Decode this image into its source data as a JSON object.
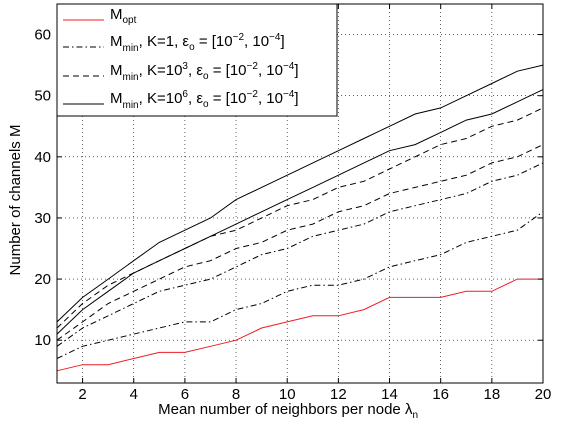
{
  "chart_data": {
    "type": "line",
    "title": "",
    "xlabel": {
      "main": "Mean number of neighbors per node ",
      "symbol": "λ",
      "sub": "n"
    },
    "ylabel": "Number of channels M",
    "xlim": [
      1,
      20
    ],
    "ylim": [
      3,
      65
    ],
    "xticks": [
      2,
      4,
      6,
      8,
      10,
      12,
      14,
      16,
      18,
      20
    ],
    "yticks": [
      10,
      20,
      30,
      40,
      50,
      60
    ],
    "grid": true,
    "legend_position": "top-left",
    "x": [
      1,
      2,
      3,
      4,
      5,
      6,
      7,
      8,
      9,
      10,
      11,
      12,
      13,
      14,
      15,
      16,
      17,
      18,
      19,
      20
    ],
    "series": [
      {
        "key": "opt",
        "legend": {
          "base": "M",
          "sub": "opt",
          "rest": "",
          "sup": "",
          "tail": ""
        },
        "color": "#ee1c25",
        "dash": "",
        "values": [
          5,
          6,
          6,
          7,
          8,
          8,
          9,
          10,
          12,
          13,
          14,
          14,
          15,
          17,
          17,
          17,
          18,
          18,
          20,
          20
        ]
      },
      {
        "key": "k1-low",
        "legend": {
          "base": "M",
          "sub": "min",
          "rest": ", K=1, ε",
          "sup": "",
          "tail": " = [10⁻², 10⁻⁴]",
          "eps_sub": "o"
        },
        "color": "#000000",
        "dash": "6,3,1.5,3",
        "values": [
          7,
          9,
          10,
          11,
          12,
          13,
          13,
          15,
          16,
          18,
          19,
          19,
          20,
          22,
          23,
          24,
          26,
          27,
          28,
          31
        ]
      },
      {
        "key": "k1-high",
        "legend": null,
        "color": "#000000",
        "dash": "6,3,1.5,3",
        "values": [
          9,
          12,
          14,
          16,
          18,
          19,
          20,
          22,
          24,
          25,
          27,
          28,
          29,
          31,
          32,
          33,
          34,
          36,
          37,
          39
        ]
      },
      {
        "key": "k3-low",
        "legend": {
          "base": "M",
          "sub": "min",
          "rest": ", K=10",
          "sup": "3",
          "tail": ", ε",
          "eps_sub": "o"
        },
        "color": "#000000",
        "dash": "6,4",
        "values": [
          10,
          13,
          16,
          18,
          20,
          22,
          23,
          25,
          26,
          28,
          29,
          31,
          32,
          34,
          35,
          36,
          37,
          39,
          40,
          42
        ]
      },
      {
        "key": "k3-high",
        "legend": null,
        "color": "#000000",
        "dash": "6,4",
        "values": [
          12,
          16,
          19,
          21,
          23,
          25,
          27,
          28,
          30,
          32,
          33,
          35,
          36,
          38,
          40,
          42,
          43,
          45,
          46,
          48
        ]
      },
      {
        "key": "k6-low",
        "legend": {
          "base": "M",
          "sub": "min",
          "rest": ", K=10",
          "sup": "6",
          "tail": ", ε",
          "eps_sub": "o"
        },
        "color": "#000000",
        "dash": "",
        "values": [
          11,
          15,
          18,
          21,
          23,
          25,
          27,
          29,
          31,
          33,
          35,
          37,
          39,
          41,
          42,
          44,
          46,
          47,
          49,
          51
        ]
      },
      {
        "key": "k6-high",
        "legend": null,
        "color": "#000000",
        "dash": "",
        "values": [
          13,
          17,
          20,
          23,
          26,
          28,
          30,
          33,
          35,
          37,
          39,
          41,
          43,
          45,
          47,
          48,
          50,
          52,
          54,
          55
        ]
      }
    ]
  },
  "legend_labels": {
    "l1": "M",
    "l1_sub": "opt",
    "l2_base": "M",
    "l2_sub": "min",
    "l2_text": ", K=1, ε",
    "l2_eps_sub": "o",
    "l2_tail": " = [10",
    "l2_sup1": "−2",
    "l2_mid": ", 10",
    "l2_sup2": "−4",
    "l2_end": "]",
    "l3_base": "M",
    "l3_sub": "min",
    "l3_text": ", K=10",
    "l3_sup": "3",
    "l3_eps": ", ε",
    "l3_eps_sub": "o",
    "l3_tail": " = [10",
    "l3_sup1": "−2",
    "l3_mid": ", 10",
    "l3_sup2": "−4",
    "l3_end": "]",
    "l4_base": "M",
    "l4_sub": "min",
    "l4_text": ", K=10",
    "l4_sup": "6",
    "l4_eps": ", ε",
    "l4_eps_sub": "o",
    "l4_tail": " = [10",
    "l4_sup1": "−2",
    "l4_mid": ", 10",
    "l4_sup2": "−4",
    "l4_end": "]"
  }
}
